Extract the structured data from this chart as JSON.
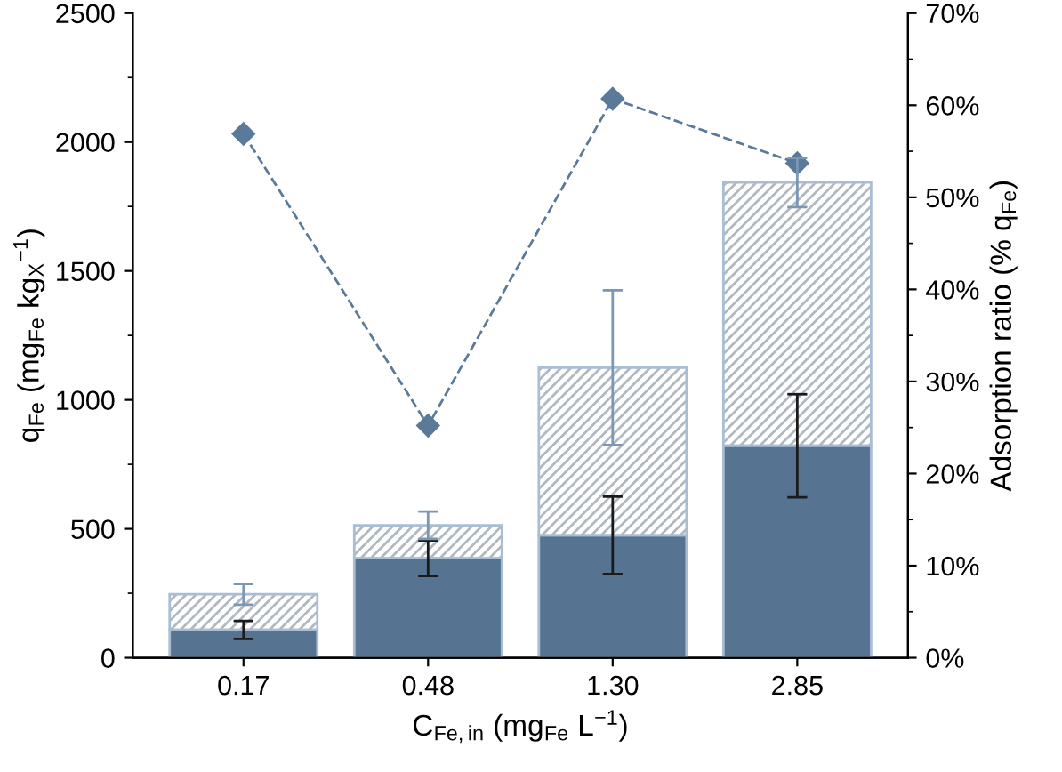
{
  "chart_data": {
    "type": "bar",
    "stacked": true,
    "categories": [
      "0.17",
      "0.48",
      "1.30",
      "2.85"
    ],
    "xlabel": "C$_{Fe,in}$ (mg$_{Fe}$ L$^{−1}$)",
    "ylabel": "q$_{Fe}$ (mg$_{Fe}$ kg$_{X}$$^{−1}$)",
    "y2label": "Adsorption ratio (% q$_{Fe}$)",
    "ylim": [
      0,
      2500
    ],
    "yticks": [
      0,
      500,
      1000,
      1500,
      2000,
      2500
    ],
    "y2lim": [
      0,
      70
    ],
    "y2ticks": [
      {
        "value": 0,
        "label": "0%"
      },
      {
        "value": 10,
        "label": "10%"
      },
      {
        "value": 20,
        "label": "20%"
      },
      {
        "value": 30,
        "label": "30%"
      },
      {
        "value": 40,
        "label": "40%"
      },
      {
        "value": 50,
        "label": "50%"
      },
      {
        "value": 60,
        "label": "60%"
      },
      {
        "value": 70,
        "label": "70%"
      }
    ],
    "grid": false,
    "legend": false,
    "series": [
      {
        "color": "#567491",
        "values": [
          108,
          386,
          475,
          822
        ],
        "errors": [
          35,
          69,
          150,
          200
        ]
      },
      {
        "color": "#b0b8c0",
        "values": [
          138,
          128,
          650,
          1021
        ],
        "errors": [
          40,
          53,
          300,
          95
        ]
      },
      {
        "type": "line",
        "axis": "y2",
        "color": "#5b7a99",
        "marker": "diamond",
        "line_style": "dashed",
        "values": [
          56.9,
          25.2,
          60.7,
          53.7
        ]
      }
    ]
  }
}
